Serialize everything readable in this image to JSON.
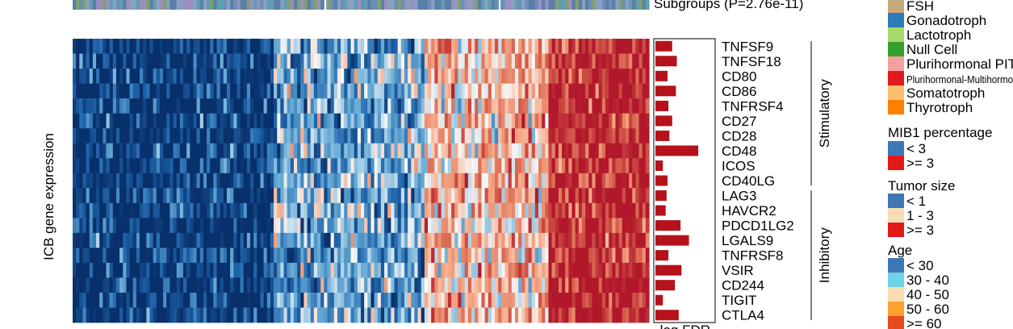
{
  "chart_data": {
    "type": "heatmap",
    "ylabel": "ICB gene expression",
    "subgroups_label": "Subgroups (P=2.76e-11)",
    "bar_axis_label": "-log FDR",
    "genes": [
      "TNFSF9",
      "TNFSF18",
      "CD80",
      "CD86",
      "TNFRSF4",
      "CD27",
      "CD28",
      "CD48",
      "ICOS",
      "CD40LG",
      "LAG3",
      "HAVCR2",
      "PDCD1LG2",
      "LGALS9",
      "TNFRSF8",
      "VSIR",
      "CD244",
      "TIGIT",
      "CTLA4"
    ],
    "groups": [
      {
        "name": "Stimulatory",
        "start": 0,
        "end": 9
      },
      {
        "name": "Inhibitory",
        "start": 10,
        "end": 18
      }
    ],
    "neg_log_fdr": [
      1.8,
      2.3,
      1.3,
      2.2,
      1.4,
      1.8,
      1.5,
      4.6,
      0.8,
      1.3,
      1.2,
      1.1,
      2.7,
      3.6,
      1.4,
      2.8,
      2.1,
      0.8,
      2.5
    ],
    "column_groups": [
      {
        "columns": 60,
        "mean": -0.95
      },
      {
        "columns": 45,
        "mean": -0.35
      },
      {
        "columns": 37,
        "mean": 0.25
      },
      {
        "columns": 30,
        "mean": 0.95
      }
    ],
    "color_scale": {
      "low": "#08306b",
      "mid": "#ffffff",
      "high": "#b2182b"
    }
  },
  "legend": {
    "subtype_items": [
      {
        "label": "FSH",
        "color": "#c8a97e"
      },
      {
        "label": "Gonadotroph",
        "color": "#2c7bb6"
      },
      {
        "label": "Lactotroph",
        "color": "#a6d96a"
      },
      {
        "label": "Null Cell",
        "color": "#33a02c"
      },
      {
        "label": "Plurihormonal PIT-",
        "color": "#f4a0a0"
      },
      {
        "label": "Plurihormonal-Multihormo",
        "color": "#e31a1c"
      },
      {
        "label": "Somatotroph",
        "color": "#fdbf6f"
      },
      {
        "label": "Thyrotroph",
        "color": "#ff7f00"
      }
    ],
    "mib1": {
      "title": "MIB1 percentage",
      "items": [
        {
          "label": "< 3",
          "color": "#3e78b4"
        },
        {
          "label": ">= 3",
          "color": "#e31a1c"
        }
      ]
    },
    "tumor_size": {
      "title": "Tumor size",
      "items": [
        {
          "label": "< 1",
          "color": "#3e78b4"
        },
        {
          "label": "1 - 3",
          "color": "#fcdcb4"
        },
        {
          "label": ">= 3",
          "color": "#e31a1c"
        }
      ]
    },
    "age": {
      "title": "Age",
      "items": [
        {
          "label": "< 30",
          "color": "#3e78b4"
        },
        {
          "label": "30 - 40",
          "color": "#6fd3e6"
        },
        {
          "label": "40 - 50",
          "color": "#fcdcb4"
        },
        {
          "label": "50 - 60",
          "color": "#fda030"
        },
        {
          "label": ">= 60",
          "color": "#e34a1c"
        }
      ]
    }
  }
}
